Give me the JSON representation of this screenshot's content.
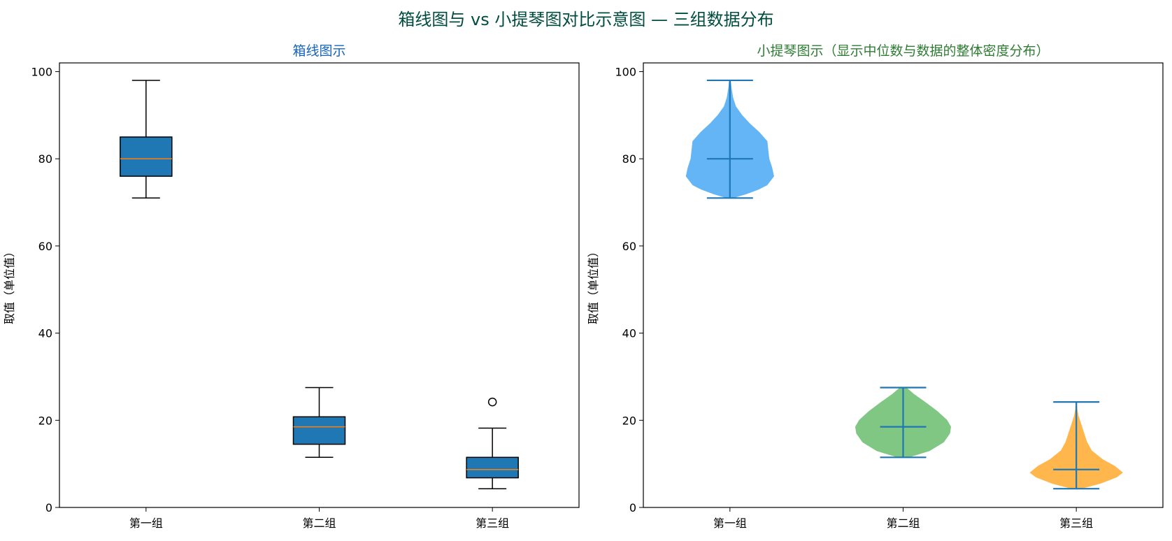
{
  "figure": {
    "suptitle": "箱线图与 vs 小提琴图对比示意图 — 三组数据分布",
    "suptitle_color": "#004d40"
  },
  "chart_data": [
    {
      "type": "box",
      "title": "箱线图示",
      "title_color": "#1565c0",
      "ylabel": "取值（单位值）",
      "ylim": [
        0,
        102
      ],
      "yticks": [
        0,
        20,
        40,
        60,
        80,
        100
      ],
      "categories": [
        "第一组",
        "第二组",
        "第三组"
      ],
      "box_color": "#1f77b4",
      "median_color": "#ff7f0e",
      "boxes": [
        {
          "category": "第一组",
          "whisker_low": 71,
          "q1": 76,
          "median": 80,
          "q3": 85,
          "whisker_high": 98,
          "outliers": []
        },
        {
          "category": "第二组",
          "whisker_low": 11.5,
          "q1": 14.5,
          "median": 18.5,
          "q3": 20.8,
          "whisker_high": 27.5,
          "outliers": []
        },
        {
          "category": "第三组",
          "whisker_low": 4.3,
          "q1": 6.8,
          "median": 8.7,
          "q3": 11.5,
          "whisker_high": 18.2,
          "outliers": [
            24.2
          ]
        }
      ]
    },
    {
      "type": "violin",
      "title": "小提琴图示（显示中位数与数据的整体密度分布）",
      "title_color": "#2e7d32",
      "ylabel": "取值（单位值）",
      "ylim": [
        0,
        102
      ],
      "yticks": [
        0,
        20,
        40,
        60,
        80,
        100
      ],
      "categories": [
        "第一组",
        "第二组",
        "第三组"
      ],
      "line_color": "#1f77b4",
      "violins": [
        {
          "category": "第一组",
          "color": "#64b5f6",
          "min": 71,
          "median": 80,
          "max": 98,
          "profile": [
            [
              71,
              0.05
            ],
            [
              72,
              0.35
            ],
            [
              73,
              0.6
            ],
            [
              74,
              0.78
            ],
            [
              76,
              0.92
            ],
            [
              78,
              0.88
            ],
            [
              80,
              0.82
            ],
            [
              82,
              0.8
            ],
            [
              84,
              0.78
            ],
            [
              86,
              0.62
            ],
            [
              88,
              0.42
            ],
            [
              90,
              0.25
            ],
            [
              92,
              0.12
            ],
            [
              94,
              0.06
            ],
            [
              96,
              0.03
            ],
            [
              98,
              0.01
            ]
          ]
        },
        {
          "category": "第二组",
          "color": "#81c784",
          "min": 11.5,
          "median": 18.5,
          "max": 27.5,
          "profile": [
            [
              11.5,
              0.1
            ],
            [
              13,
              0.55
            ],
            [
              15,
              0.85
            ],
            [
              17,
              0.98
            ],
            [
              18.5,
              1.0
            ],
            [
              20,
              0.92
            ],
            [
              22,
              0.72
            ],
            [
              24,
              0.48
            ],
            [
              26,
              0.22
            ],
            [
              27.5,
              0.06
            ]
          ]
        },
        {
          "category": "第三组",
          "color": "#ffb74d",
          "min": 4.3,
          "median": 8.7,
          "max": 24.2,
          "profile": [
            [
              4.3,
              0.08
            ],
            [
              5.5,
              0.5
            ],
            [
              7,
              0.85
            ],
            [
              8,
              0.97
            ],
            [
              9.5,
              0.8
            ],
            [
              11,
              0.55
            ],
            [
              13,
              0.32
            ],
            [
              15,
              0.22
            ],
            [
              17,
              0.16
            ],
            [
              19,
              0.1
            ],
            [
              21,
              0.04
            ],
            [
              22.5,
              0.015
            ],
            [
              24.2,
              0.005
            ]
          ]
        }
      ]
    }
  ]
}
